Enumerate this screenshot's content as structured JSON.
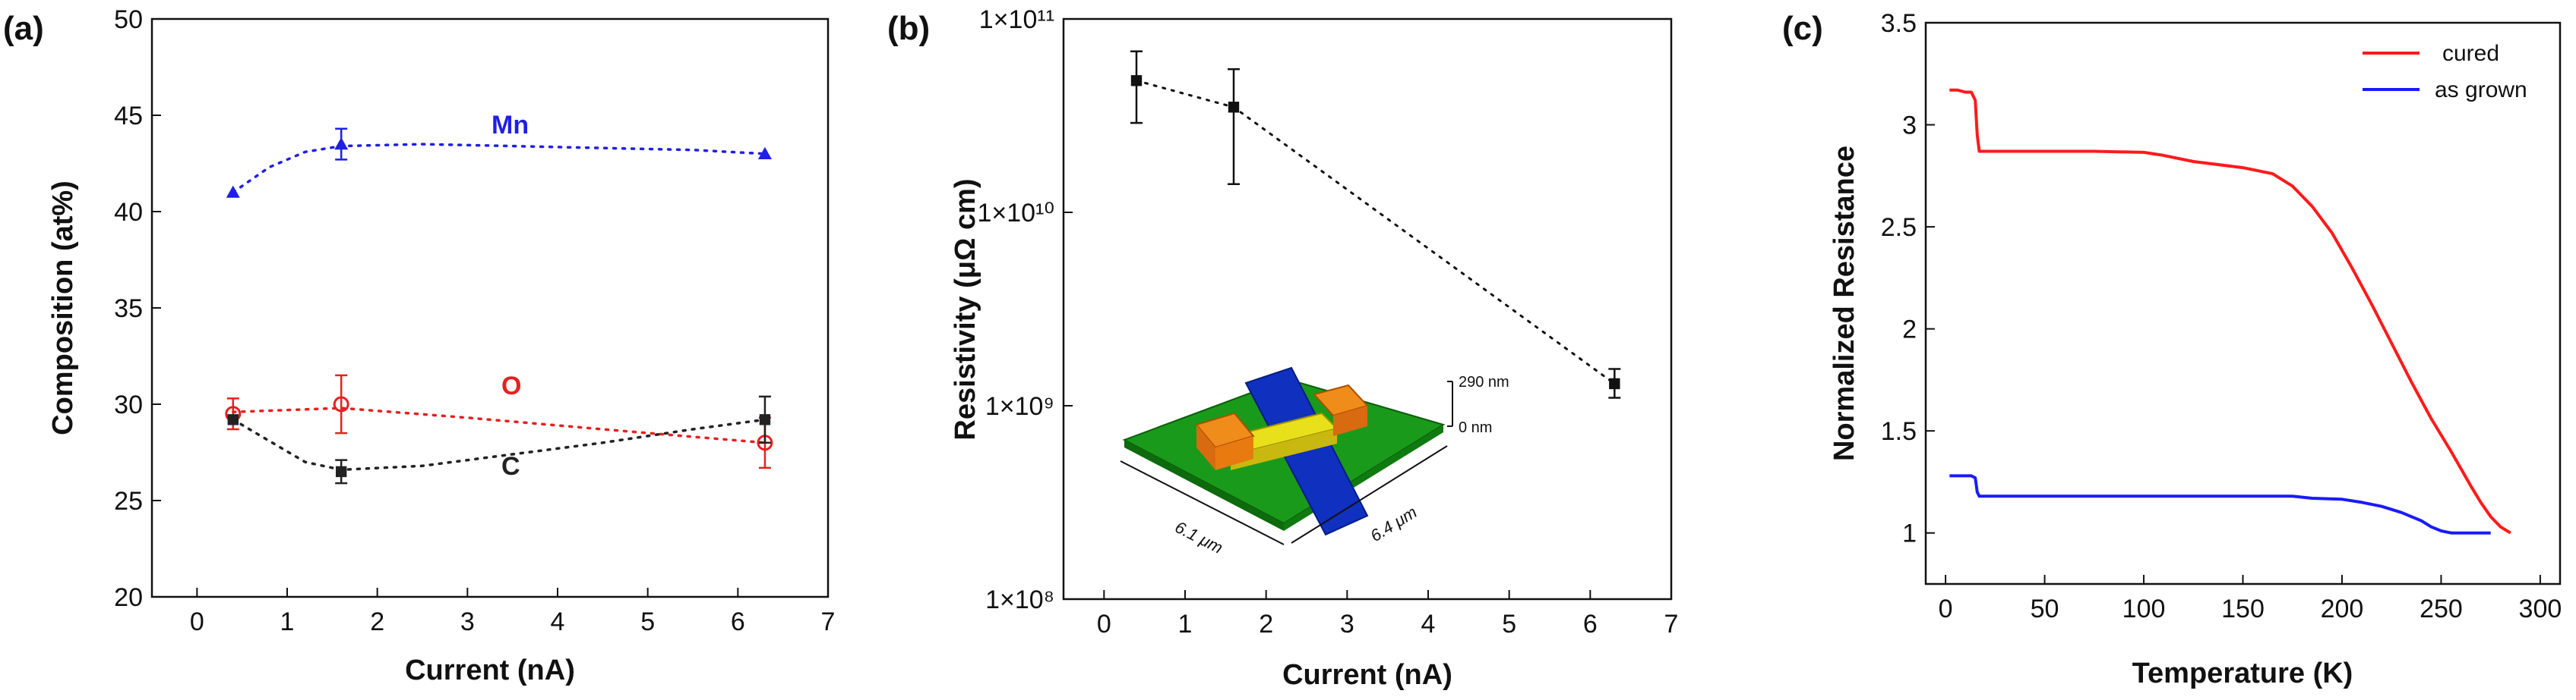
{
  "chart_data": [
    {
      "panel": "(a)",
      "type": "scatter",
      "xlabel": "Current (nA)",
      "ylabel": "Composition (at%)",
      "xlim": [
        -0.5,
        7
      ],
      "ylim": [
        20,
        50
      ],
      "xticks": [
        "0",
        "1",
        "2",
        "3",
        "4",
        "5",
        "6",
        "7"
      ],
      "yticks": [
        "20",
        "25",
        "30",
        "35",
        "40",
        "45",
        "50"
      ],
      "series": [
        {
          "name": "Mn",
          "color": "#1f1fe6",
          "marker": "triangle",
          "x": [
            0.4,
            1.6,
            6.3
          ],
          "y": [
            41,
            43.5,
            43
          ],
          "err": [
            0,
            0.8,
            0
          ],
          "fit": [
            [
              0.4,
              41
            ],
            [
              0.8,
              42.3
            ],
            [
              1.2,
              43.1
            ],
            [
              1.6,
              43.4
            ],
            [
              2.5,
              43.5
            ],
            [
              3.5,
              43.4
            ],
            [
              4.5,
              43.3
            ],
            [
              5.5,
              43.2
            ],
            [
              6.3,
              43
            ]
          ]
        },
        {
          "name": "O",
          "color": "#e62020",
          "marker": "circle",
          "x": [
            0.4,
            1.6,
            6.3
          ],
          "y": [
            29.5,
            30,
            28
          ],
          "err": [
            0.8,
            1.5,
            1.3
          ],
          "fit": [
            [
              0.4,
              29.6
            ],
            [
              1.6,
              29.8
            ],
            [
              3,
              29.3
            ],
            [
              4.5,
              28.7
            ],
            [
              6.3,
              28
            ]
          ]
        },
        {
          "name": "C",
          "color": "#222222",
          "marker": "square",
          "x": [
            0.4,
            1.6,
            6.3
          ],
          "y": [
            29.2,
            26.5,
            29.2
          ],
          "err": [
            0,
            0.6,
            1.2
          ],
          "fit": [
            [
              0.4,
              29.2
            ],
            [
              0.8,
              28.1
            ],
            [
              1.2,
              27
            ],
            [
              1.6,
              26.6
            ],
            [
              2.5,
              26.8
            ],
            [
              3.5,
              27.4
            ],
            [
              4.5,
              28
            ],
            [
              5.5,
              28.7
            ],
            [
              6.3,
              29.2
            ]
          ]
        }
      ]
    },
    {
      "panel": "(b)",
      "type": "scatter",
      "xlabel": "Current (nA)",
      "ylabel": "Resistivity (μΩ cm)",
      "yscale": "log",
      "xlim": [
        -0.5,
        7
      ],
      "ylim": [
        100000000,
        100000000000
      ],
      "xticks": [
        "0",
        "1",
        "2",
        "3",
        "4",
        "5",
        "6",
        "7"
      ],
      "yticks": [
        "1×10⁸",
        "1×10⁹",
        "1×10¹⁰",
        "1×10¹¹"
      ],
      "series": [
        {
          "name": "Resistivity",
          "color": "#111111",
          "marker": "square",
          "x": [
            0.4,
            1.6,
            6.3
          ],
          "y": [
            48000000000,
            35000000000,
            1300000000
          ],
          "err_low": [
            29000000000,
            14000000000,
            1100000000
          ],
          "err_high": [
            68000000000,
            55000000000,
            1550000000
          ]
        }
      ],
      "inset": {
        "z_top": "290 nm",
        "z_bottom": "0 nm",
        "width_label": "6.1 μm",
        "depth_label": "6.4 μm"
      }
    },
    {
      "panel": "(c)",
      "type": "line",
      "xlabel": "Temperature  (K)",
      "ylabel": "Normalized Resistance",
      "xlim": [
        -10,
        310
      ],
      "ylim": [
        0.75,
        3.5
      ],
      "xticks": [
        "0",
        "50",
        "100",
        "150",
        "200",
        "250",
        "300"
      ],
      "yticks": [
        "1",
        "1.5",
        "2",
        "2.5",
        "3",
        "3.5"
      ],
      "legend_position": "top-right",
      "series": [
        {
          "name": "cured",
          "color": "#ff1a1a",
          "x": [
            2,
            6,
            10,
            13,
            15,
            16,
            17,
            20,
            30,
            50,
            75,
            100,
            110,
            125,
            150,
            165,
            175,
            185,
            195,
            205,
            215,
            225,
            235,
            245,
            255,
            265,
            270,
            275,
            280,
            285
          ],
          "y": [
            3.17,
            3.17,
            3.16,
            3.16,
            3.12,
            2.95,
            2.87,
            2.87,
            2.87,
            2.87,
            2.87,
            2.865,
            2.85,
            2.82,
            2.79,
            2.76,
            2.7,
            2.6,
            2.47,
            2.3,
            2.12,
            1.93,
            1.74,
            1.56,
            1.4,
            1.23,
            1.15,
            1.08,
            1.03,
            1.0
          ]
        },
        {
          "name": "as grown",
          "color": "#1a1aff",
          "x": [
            2,
            6,
            10,
            13,
            15,
            16,
            17,
            20,
            50,
            100,
            150,
            175,
            185,
            200,
            210,
            220,
            230,
            240,
            245,
            250,
            255,
            260,
            270,
            275
          ],
          "y": [
            1.28,
            1.28,
            1.28,
            1.28,
            1.27,
            1.2,
            1.18,
            1.18,
            1.18,
            1.18,
            1.18,
            1.18,
            1.17,
            1.165,
            1.15,
            1.13,
            1.1,
            1.06,
            1.03,
            1.01,
            1.0,
            1.0,
            1.0,
            1.0
          ]
        }
      ]
    }
  ]
}
